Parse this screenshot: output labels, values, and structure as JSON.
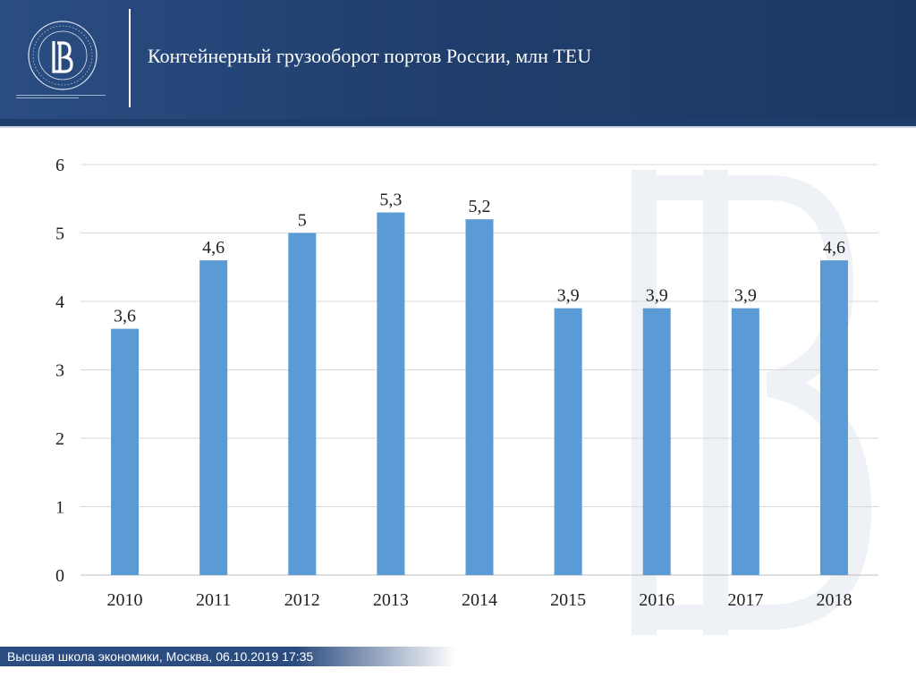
{
  "header": {
    "title": "Контейнерный грузооборот портов России, млн TEU"
  },
  "footer": {
    "text": "Высшая школа экономики, Москва, 06.10.2019 17:35"
  },
  "colors": {
    "header_bg": "#213f6f",
    "bar": "#5b9bd5",
    "grid": "#d9d9d9",
    "text": "#222222"
  },
  "chart_data": {
    "type": "bar",
    "categories": [
      "2010",
      "2011",
      "2012",
      "2013",
      "2014",
      "2015",
      "2016",
      "2017",
      "2018"
    ],
    "values": [
      3.6,
      4.6,
      5,
      5.3,
      5.2,
      3.9,
      3.9,
      3.9,
      4.6
    ],
    "value_labels": [
      "3,6",
      "4,6",
      "5",
      "5,3",
      "5,2",
      "3,9",
      "3,9",
      "3,9",
      "4,6"
    ],
    "yticks": [
      0,
      1,
      2,
      3,
      4,
      5,
      6
    ],
    "ylim": [
      0,
      6
    ],
    "grid": true,
    "legend": "none"
  }
}
